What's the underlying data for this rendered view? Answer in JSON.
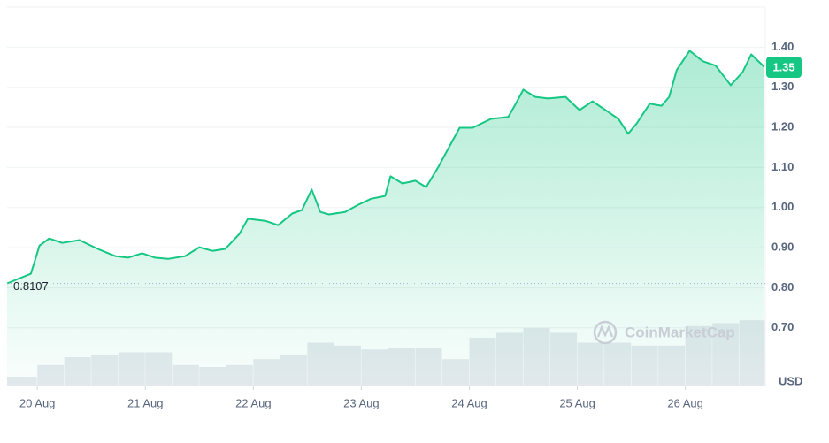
{
  "chart_data": {
    "type": "area",
    "color": "#16c784",
    "grid": true,
    "unit_label": "USD",
    "watermark": "CoinMarketCap",
    "baseline": 0.8107,
    "current_price": 1.35,
    "xlim": [
      19.72,
      26.74
    ],
    "xticks": [
      {
        "value": 20,
        "label": "20 Aug"
      },
      {
        "value": 21,
        "label": "21 Aug"
      },
      {
        "value": 22,
        "label": "22 Aug"
      },
      {
        "value": 23,
        "label": "23 Aug"
      },
      {
        "value": 24,
        "label": "24 Aug"
      },
      {
        "value": 25,
        "label": "25 Aug"
      },
      {
        "value": 26,
        "label": "26 Aug"
      }
    ],
    "ylim": [
      0.554,
      1.5
    ],
    "yticks": [
      {
        "value": 0.7,
        "label": "0.70"
      },
      {
        "value": 0.8,
        "label": "0.80"
      },
      {
        "value": 0.9,
        "label": "0.90"
      },
      {
        "value": 1.0,
        "label": "1.00"
      },
      {
        "value": 1.1,
        "label": "1.10"
      },
      {
        "value": 1.2,
        "label": "1.20"
      },
      {
        "value": 1.3,
        "label": "1.30"
      },
      {
        "value": 1.4,
        "label": "1.40"
      }
    ],
    "x": [
      19.72,
      19.94,
      20.02,
      20.11,
      20.23,
      20.39,
      20.56,
      20.72,
      20.84,
      20.97,
      21.09,
      21.21,
      21.37,
      21.5,
      21.62,
      21.74,
      21.87,
      21.95,
      22.11,
      22.23,
      22.36,
      22.45,
      22.54,
      22.62,
      22.7,
      22.85,
      22.97,
      23.09,
      23.22,
      23.27,
      23.38,
      23.5,
      23.6,
      23.71,
      23.79,
      23.91,
      24.03,
      24.2,
      24.36,
      24.43,
      24.5,
      24.61,
      24.73,
      24.89,
      25.02,
      25.14,
      25.26,
      25.38,
      25.47,
      25.55,
      25.67,
      25.78,
      25.85,
      25.92,
      26.04,
      26.16,
      26.28,
      26.42,
      26.53,
      26.61,
      26.73
    ],
    "values": [
      0.811,
      0.835,
      0.905,
      0.923,
      0.912,
      0.919,
      0.897,
      0.879,
      0.875,
      0.886,
      0.875,
      0.872,
      0.879,
      0.901,
      0.892,
      0.897,
      0.934,
      0.972,
      0.967,
      0.956,
      0.985,
      0.994,
      1.045,
      0.989,
      0.983,
      0.989,
      1.007,
      1.022,
      1.029,
      1.078,
      1.06,
      1.067,
      1.051,
      1.1,
      1.14,
      1.199,
      1.199,
      1.221,
      1.226,
      1.259,
      1.294,
      1.276,
      1.272,
      1.276,
      1.243,
      1.265,
      1.243,
      1.221,
      1.184,
      1.21,
      1.259,
      1.254,
      1.276,
      1.343,
      1.391,
      1.365,
      1.354,
      1.305,
      1.338,
      1.382,
      1.351
    ],
    "volume": {
      "color": "#e6e9ee",
      "ylim": [
        0,
        100
      ],
      "x": [
        19.72,
        20.0,
        20.25,
        20.5,
        20.75,
        21.0,
        21.25,
        21.5,
        21.75,
        22.0,
        22.25,
        22.5,
        22.75,
        23.0,
        23.25,
        23.5,
        23.75,
        24.0,
        24.25,
        24.5,
        24.75,
        25.0,
        25.25,
        25.5,
        25.75,
        26.0,
        26.25,
        26.5
      ],
      "values": [
        10,
        22,
        30,
        32,
        35,
        35,
        22,
        20,
        22,
        28,
        32,
        45,
        42,
        38,
        40,
        40,
        28,
        50,
        55,
        60,
        55,
        45,
        45,
        42,
        42,
        62,
        65,
        68
      ]
    }
  }
}
